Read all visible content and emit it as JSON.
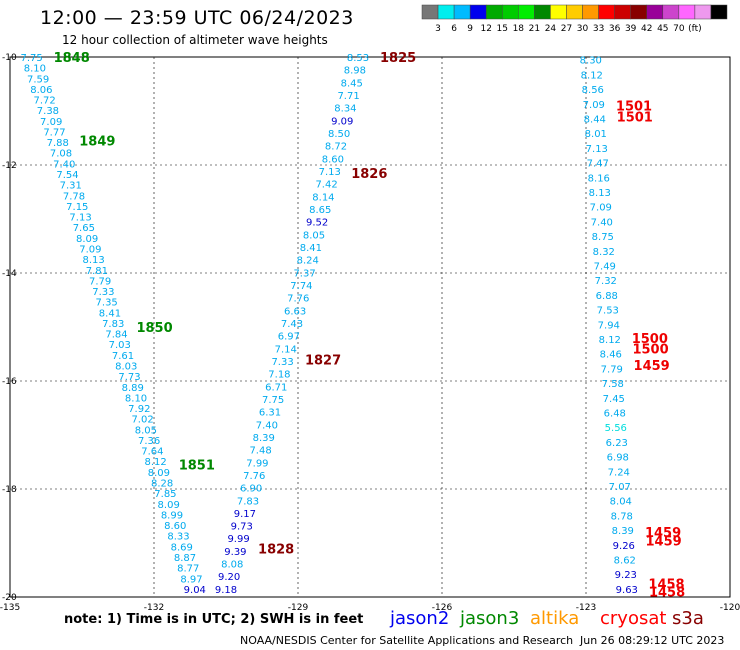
{
  "header": {
    "title": "12:00 — 23:59 UTC 06/24/2023",
    "subtitle": "12 hour collection of altimeter wave heights"
  },
  "color_scale": {
    "colors": [
      "#777777",
      "#00eeee",
      "#00bbff",
      "#0000ee",
      "#00aa00",
      "#00cc00",
      "#00ee00",
      "#008800",
      "#ffff00",
      "#ffcc00",
      "#ff9900",
      "#ff0000",
      "#cc0000",
      "#880000",
      "#990099",
      "#cc44cc",
      "#ff66ff",
      "#ee99ee",
      "#000000"
    ],
    "labels": [
      "3",
      "6",
      "9",
      "12",
      "15",
      "18",
      "21",
      "24",
      "27",
      "30",
      "33",
      "36",
      "39",
      "42",
      "45",
      "70",
      "(ft)"
    ]
  },
  "axes": {
    "x_ticks": [
      "-135",
      "-132",
      "-129",
      "-126",
      "-123",
      "-120"
    ],
    "y_ticks": [
      "-10",
      "-12",
      "-14",
      "-16",
      "-18",
      "-20"
    ]
  },
  "chart_data": {
    "type": "scatter",
    "x_unit": "degrees longitude",
    "y_unit": "degrees latitude",
    "xlim": [
      -135,
      -120
    ],
    "ylim": [
      -20,
      -10
    ],
    "tracks": [
      {
        "satellite": "jason3",
        "values": [
          "7.75",
          "8.10",
          "7.59",
          "8.06",
          "7.72",
          "7.38",
          "7.09",
          "7.77",
          "7.88",
          "7.08",
          "7.40",
          "7.54",
          "7.31",
          "7.78",
          "7.15",
          "7.13",
          "7.65",
          "8.09",
          "7.09",
          "8.13",
          "7.81",
          "7.79",
          "7.33",
          "7.35",
          "8.41",
          "7.83",
          "7.84",
          "7.03",
          "7.61",
          "8.03",
          "7.73",
          "8.89",
          "8.10",
          "7.92",
          "7.02",
          "8.05",
          "7.36",
          "7.64",
          "8.12",
          "8.09",
          "8.28",
          "7.85",
          "8.09",
          "8.99",
          "8.60",
          "8.33",
          "8.69",
          "8.87",
          "8.77",
          "8.97",
          "9.04"
        ],
        "lon_start": -134.55,
        "lat_start": -10.0,
        "lon_end": -131.15,
        "lat_end": -19.85,
        "time_labels": [
          {
            "text": "1848",
            "lat": -10.0
          },
          {
            "text": "1849",
            "lat": -11.55
          },
          {
            "text": "1850",
            "lat": -15.0
          },
          {
            "text": "1851",
            "lat": -17.55
          }
        ]
      },
      {
        "satellite": "jason3",
        "values": [
          "8.53",
          "8.98",
          "8.45",
          "7.71",
          "8.34",
          "9.09",
          "8.50",
          "8.72",
          "8.60",
          "7.13",
          "7.42",
          "8.14",
          "8.65",
          "9.52",
          "8.05",
          "8.41",
          "8.24",
          "7.37",
          "7.74",
          "7.76",
          "6.63",
          "7.43",
          "6.97",
          "7.14",
          "7.33",
          "7.18",
          "6.71",
          "7.75",
          "6.31",
          "7.40",
          "8.39",
          "7.48",
          "7.99",
          "7.76",
          "6.90",
          "7.83",
          "9.17",
          "9.73",
          "9.99",
          "9.39",
          "8.08",
          "9.20",
          "9.18"
        ],
        "lon_start": -127.75,
        "lat_start": -10.0,
        "lon_end": -130.5,
        "lat_end": -19.85,
        "time_labels": [
          {
            "text": "1825",
            "lat": -10.0
          },
          {
            "text": "1826",
            "lat": -12.15
          },
          {
            "text": "1827",
            "lat": -15.6
          },
          {
            "text": "1828",
            "lat": -19.1
          }
        ]
      },
      {
        "satellite": "cryosat",
        "values": [
          "8.30",
          "8.12",
          "8.56",
          "7.09",
          "8.44",
          "8.01",
          "7.13",
          "7.47",
          "8.16",
          "8.13",
          "7.09",
          "7.40",
          "8.75",
          "8.32",
          "7.49",
          "7.32",
          "6.88",
          "7.53",
          "7.94",
          "8.12",
          "8.46",
          "7.79",
          "7.58",
          "7.45",
          "6.48",
          "5.56",
          "6.23",
          "6.98",
          "7.24",
          "7.07",
          "8.04",
          "8.78",
          "8.39",
          "9.26",
          "8.62",
          "9.23",
          "9.63"
        ],
        "lon_start": -122.9,
        "lat_start": -10.05,
        "lon_end": -122.15,
        "lat_end": -19.85,
        "time_labels": [
          {
            "text": "1501",
            "lat": -10.9
          },
          {
            "text": "1501",
            "lat": -11.1
          },
          {
            "text": "1500",
            "lat": -15.2
          },
          {
            "text": "1500",
            "lat": -15.4
          },
          {
            "text": "1459",
            "lat": -15.7
          },
          {
            "text": "1459",
            "lat": -18.8
          },
          {
            "text": "1459",
            "lat": -18.95
          },
          {
            "text": "1458",
            "lat": -19.75
          },
          {
            "text": "1458",
            "lat": -19.9
          }
        ]
      }
    ]
  },
  "footer": {
    "note": "note:  1) Time is in UTC;  2) SWH is in feet",
    "satellites": [
      {
        "name": "jason2",
        "color": "#0000ee"
      },
      {
        "name": "jason3",
        "color": "#008800"
      },
      {
        "name": "altika",
        "color": "#ff9900"
      },
      {
        "name": "cryosat",
        "color": "#ff0000"
      },
      {
        "name": "s3a",
        "color": "#880000"
      }
    ],
    "credit": "NOAA/NESDIS Center for Satellite Applications and Research",
    "timestamp": "Jun 26 08:29:12 UTC 2023"
  }
}
